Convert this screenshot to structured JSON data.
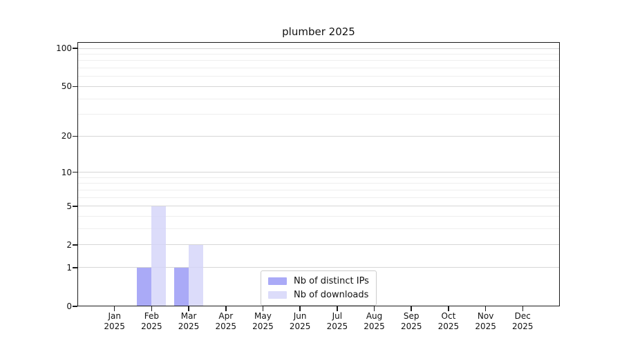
{
  "chart_data": {
    "type": "bar",
    "title": "plumber 2025",
    "year_label": "2025",
    "categories": [
      "Jan",
      "Feb",
      "Mar",
      "Apr",
      "May",
      "Jun",
      "Jul",
      "Aug",
      "Sep",
      "Oct",
      "Nov",
      "Dec"
    ],
    "series": [
      {
        "name": "Nb of distinct IPs",
        "color": "#9595F5",
        "opacity": 0.8,
        "values": [
          0,
          1,
          1,
          0,
          0,
          0,
          0,
          0,
          0,
          0,
          0,
          0
        ]
      },
      {
        "name": "Nb of downloads",
        "color": "#D3D3F9",
        "opacity": 0.8,
        "values": [
          0,
          5,
          2,
          0,
          0,
          0,
          0,
          0,
          0,
          0,
          0,
          0
        ]
      }
    ],
    "y_axis": {
      "scale": "log10(1+y)",
      "ticks": [
        0,
        1,
        2,
        5,
        10,
        20,
        50,
        100
      ],
      "minor_ticks": [
        3,
        4,
        6,
        7,
        8,
        9,
        30,
        40,
        60,
        70,
        80,
        90
      ],
      "ylim": [
        0,
        112
      ]
    },
    "x_axis": {
      "label_format": "month over year"
    },
    "legend": {
      "position": "lower center"
    },
    "grid": "horizontal",
    "colors": {
      "major_grid": "#D6D6D6",
      "minor_grid": "#EEEEEE",
      "spine": "#1A1A1A",
      "text": "#111111",
      "background": "#FFFFFF"
    }
  }
}
